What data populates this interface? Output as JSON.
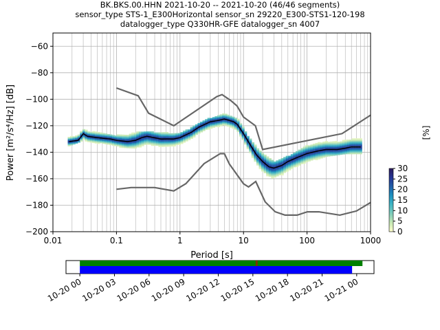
{
  "header": {
    "line1": "BK.BKS.00.HHN   2021-10-20 -- 2021-10-20  (46/46 segments)",
    "line2": "sensor_type STS-1_E300Horizontal sensor_sn 29220_E300-STS1-120-198",
    "line3": "datalogger_type Q330HR-GFE datalogger_sn 4007"
  },
  "chart_data": [
    {
      "type": "heatmap",
      "title": "BK.BKS.00.HHN   2021-10-20 -- 2021-10-20  (46/46 segments)",
      "xlabel": "Period [s]",
      "ylabel": "Power [m²/s⁴/Hz] [dB]",
      "xscale": "log",
      "xlim": [
        0.01,
        1000
      ],
      "ylim": [
        -200,
        -50
      ],
      "x_ticks": [
        {
          "value": 0.01,
          "label": "0.01"
        },
        {
          "value": 0.1,
          "label": "0.1"
        },
        {
          "value": 1,
          "label": "1"
        },
        {
          "value": 10,
          "label": "10"
        },
        {
          "value": 100,
          "label": "100"
        },
        {
          "value": 1000,
          "label": "1000"
        }
      ],
      "y_ticks": [
        {
          "value": -60,
          "label": "−60"
        },
        {
          "value": -80,
          "label": "−80"
        },
        {
          "value": -100,
          "label": "−100"
        },
        {
          "value": -120,
          "label": "−120"
        },
        {
          "value": -140,
          "label": "−140"
        },
        {
          "value": -160,
          "label": "−160"
        },
        {
          "value": -180,
          "label": "−180"
        },
        {
          "value": -200,
          "label": "−200"
        }
      ],
      "grid": true,
      "mean_curve": {
        "x": [
          0.018,
          0.025,
          0.028,
          0.03,
          0.035,
          0.05,
          0.08,
          0.1,
          0.15,
          0.2,
          0.25,
          0.3,
          0.5,
          0.8,
          1.0,
          1.5,
          2.0,
          3.0,
          4.0,
          5.0,
          6.0,
          7.0,
          8.0,
          10,
          13,
          16,
          20,
          25,
          30,
          40,
          50,
          70,
          100,
          150,
          200,
          300,
          400,
          500,
          700
        ],
        "y": [
          -132,
          -131,
          -128,
          -126,
          -128,
          -129,
          -130,
          -131,
          -132,
          -131,
          -129,
          -128,
          -130,
          -130,
          -129,
          -125,
          -121,
          -117,
          -116,
          -115,
          -116,
          -117,
          -119,
          -126,
          -135,
          -142,
          -147,
          -151,
          -152,
          -150,
          -147,
          -144,
          -141,
          -139,
          -138,
          -138,
          -137,
          -136,
          -136
        ]
      },
      "spread": {
        "x": [
          0.018,
          0.03,
          0.1,
          0.25,
          1.0,
          3.0,
          5.0,
          8.0,
          12,
          20,
          30,
          50,
          100,
          200,
          400,
          700
        ],
        "upper": [
          -128,
          -123,
          -127,
          -124,
          -126,
          -114,
          -111,
          -114,
          -128,
          -141,
          -147,
          -143,
          -135,
          -131,
          -129,
          -129
        ],
        "lower": [
          -135,
          -131,
          -136,
          -137,
          -136,
          -124,
          -120,
          -124,
          -140,
          -156,
          -162,
          -157,
          -148,
          -143,
          -141,
          -141
        ]
      },
      "noise_models": [
        {
          "name": "",
          "x": [
            0.1,
            0.22,
            0.32,
            0.8,
            3.8,
            4.6,
            6.3,
            7.9,
            10,
            15.4,
            20,
            354.8,
            1000
          ],
          "y": [
            -91.5,
            -97.4,
            -110.5,
            -120,
            -98,
            -96.5,
            -101,
            -105,
            -113.5,
            -120,
            -138,
            -126,
            -112
          ]
        },
        {
          "name": "",
          "x": [
            0.1,
            0.17,
            0.4,
            0.8,
            1.24,
            2.4,
            4.3,
            5.0,
            6.0,
            10,
            12,
            15.6,
            21.9,
            31.6,
            45,
            70,
            101,
            154,
            328,
            600,
            1000
          ],
          "y": [
            -168,
            -166.7,
            -166.7,
            -169.2,
            -163.7,
            -148.6,
            -141.1,
            -141.1,
            -149,
            -163.8,
            -166.2,
            -162.1,
            -177.5,
            -185,
            -187.5,
            -187.5,
            -185,
            -185,
            -187.5,
            -184.4,
            -178
          ]
        }
      ],
      "colorbar": {
        "label": "[%]",
        "ticks": [
          0,
          5,
          10,
          15,
          20,
          25,
          30
        ],
        "range": [
          0,
          30
        ],
        "colors": [
          "#ffffcc",
          "#c7e9b4",
          "#7fcdbb",
          "#41b6c4",
          "#1d91c0",
          "#225ea8",
          "#253494",
          "#2c1a5a"
        ]
      }
    },
    {
      "type": "bar",
      "title": "",
      "x_ticks": [
        "10-20 00",
        "10-20 03",
        "10-20 06",
        "10-20 09",
        "10-20 12",
        "10-20 15",
        "10-20 18",
        "10-20 21",
        "10-21 00"
      ],
      "xlim_hours": [
        -1.2,
        25.5
      ],
      "series": [
        {
          "name": "",
          "color": "#008000",
          "start_hour": 0,
          "end_hour": 24.5
        },
        {
          "name": "",
          "color": "#0000ff",
          "start_hour": 0,
          "end_hour": 23.6
        }
      ],
      "markers": [
        {
          "hour": 15.3,
          "color": "#cc0000"
        }
      ]
    }
  ]
}
